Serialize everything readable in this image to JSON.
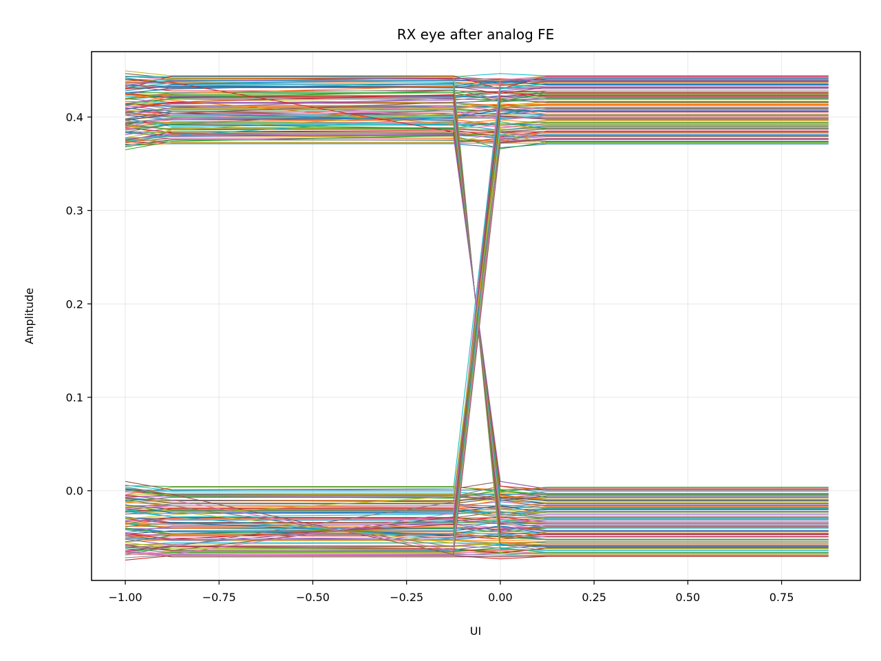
{
  "chart_data": {
    "type": "line",
    "title": "RX eye after analog FE",
    "xlabel": "UI",
    "ylabel": "Amplitude",
    "xlim": [
      -1.09,
      0.96
    ],
    "ylim": [
      -0.096,
      0.47
    ],
    "xticks": [
      -1.0,
      -0.75,
      -0.5,
      -0.25,
      0.0,
      0.25,
      0.5,
      0.75
    ],
    "xtick_labels": [
      "−1.00",
      "−0.75",
      "−0.50",
      "−0.25",
      "0.00",
      "0.25",
      "0.50",
      "0.75"
    ],
    "yticks": [
      0.0,
      0.1,
      0.2,
      0.3,
      0.4
    ],
    "ytick_labels": [
      "0.0",
      "0.1",
      "0.2",
      "0.3",
      "0.4"
    ],
    "grid": true,
    "legend": "none",
    "sample_x": [
      -1.0,
      -0.875,
      -0.125,
      0.0,
      0.125,
      0.875
    ],
    "levels": {
      "high": [
        0.371,
        0.445
      ],
      "low": [
        -0.071,
        0.003
      ]
    },
    "series": [
      {
        "values": [
          0.442,
          0.435,
          0.44,
          0.436,
          0.441,
          0.441
        ]
      },
      {
        "values": [
          0.372,
          0.381,
          0.377,
          0.374,
          0.384,
          0.384
        ]
      },
      {
        "values": [
          0.365,
          0.374,
          0.38,
          0.366,
          0.373,
          0.373
        ]
      },
      {
        "values": [
          0.43,
          0.444,
          0.444,
          0.43,
          0.444,
          0.444
        ]
      },
      {
        "values": [
          0.409,
          0.414,
          0.418,
          0.423,
          0.419,
          0.419
        ]
      },
      {
        "values": [
          0.398,
          0.406,
          0.402,
          0.401,
          0.398,
          0.398
        ]
      },
      {
        "values": [
          0.387,
          0.392,
          0.395,
          0.389,
          0.393,
          0.393
        ]
      },
      {
        "values": [
          0.42,
          0.426,
          0.429,
          0.419,
          0.428,
          0.428
        ]
      },
      {
        "values": [
          0.378,
          0.373,
          0.373,
          0.383,
          0.372,
          0.372
        ]
      },
      {
        "values": [
          0.438,
          0.44,
          0.437,
          0.431,
          0.436,
          0.436
        ]
      },
      {
        "values": [
          0.402,
          0.397,
          0.399,
          0.408,
          0.406,
          0.406
        ]
      },
      {
        "values": [
          0.415,
          0.412,
          0.41,
          0.414,
          0.413,
          0.413
        ]
      },
      {
        "values": [
          0.393,
          0.386,
          0.388,
          0.395,
          0.387,
          0.387
        ]
      },
      {
        "values": [
          0.425,
          0.421,
          0.423,
          0.427,
          0.422,
          0.422
        ]
      },
      {
        "values": [
          0.383,
          0.379,
          0.382,
          0.377,
          0.38,
          0.38
        ]
      },
      {
        "values": [
          0.434,
          0.431,
          0.433,
          0.425,
          0.432,
          0.432
        ]
      },
      {
        "values": [
          0.407,
          0.402,
          0.406,
          0.397,
          0.401,
          0.401
        ]
      },
      {
        "values": [
          0.37,
          0.376,
          0.375,
          0.372,
          0.376,
          0.376
        ]
      },
      {
        "values": [
          0.412,
          0.419,
          0.415,
          0.411,
          0.417,
          0.417
        ]
      },
      {
        "values": [
          0.396,
          0.39,
          0.392,
          0.386,
          0.391,
          0.391
        ]
      },
      {
        "values": [
          0.428,
          0.434,
          0.431,
          0.438,
          0.435,
          0.435
        ]
      },
      {
        "values": [
          0.389,
          0.395,
          0.397,
          0.392,
          0.396,
          0.396
        ]
      },
      {
        "values": [
          0.419,
          0.424,
          0.426,
          0.417,
          0.425,
          0.425
        ]
      },
      {
        "values": [
          0.375,
          0.384,
          0.386,
          0.379,
          0.385,
          0.385
        ]
      },
      {
        "values": [
          0.436,
          0.438,
          0.442,
          0.44,
          0.439,
          0.439
        ]
      },
      {
        "values": [
          0.01,
          0.001,
          0.002,
          0.01,
          0.002,
          0.002
        ]
      },
      {
        "values": [
          -0.068,
          -0.069,
          -0.068,
          -0.069,
          -0.069,
          -0.069
        ]
      },
      {
        "values": [
          0.004,
          -0.004,
          -0.006,
          0.005,
          -0.003,
          -0.003
        ]
      },
      {
        "values": [
          -0.055,
          -0.062,
          -0.06,
          -0.056,
          -0.062,
          -0.062
        ]
      },
      {
        "values": [
          -0.02,
          -0.028,
          -0.025,
          -0.022,
          -0.03,
          -0.03
        ]
      },
      {
        "values": [
          -0.04,
          -0.044,
          -0.046,
          -0.038,
          -0.046,
          -0.046
        ]
      },
      {
        "values": [
          -0.012,
          -0.016,
          -0.018,
          -0.01,
          -0.017,
          -0.017
        ]
      },
      {
        "values": [
          -0.062,
          -0.066,
          -0.065,
          -0.061,
          -0.066,
          -0.066
        ]
      },
      {
        "values": [
          -0.03,
          -0.035,
          -0.033,
          -0.028,
          -0.034,
          -0.034
        ]
      },
      {
        "values": [
          -0.048,
          -0.053,
          -0.05,
          -0.047,
          -0.052,
          -0.052
        ]
      },
      {
        "values": [
          -0.005,
          -0.01,
          -0.012,
          -0.004,
          -0.011,
          -0.011
        ]
      },
      {
        "values": [
          -0.066,
          -0.068,
          -0.067,
          -0.064,
          -0.068,
          -0.068
        ]
      },
      {
        "values": [
          -0.025,
          -0.02,
          -0.021,
          -0.026,
          -0.022,
          -0.022
        ]
      },
      {
        "values": [
          -0.058,
          -0.057,
          -0.056,
          -0.059,
          -0.057,
          -0.057
        ]
      },
      {
        "values": [
          -0.035,
          -0.04,
          -0.041,
          -0.033,
          -0.04,
          -0.04
        ]
      },
      {
        "values": [
          -0.015,
          -0.024,
          -0.023,
          -0.016,
          -0.024,
          -0.024
        ]
      },
      {
        "values": [
          -0.05,
          -0.047,
          -0.044,
          -0.052,
          -0.044,
          -0.044
        ]
      },
      {
        "values": [
          0.002,
          -0.006,
          -0.008,
          0.001,
          -0.007,
          -0.007
        ]
      },
      {
        "values": [
          -0.064,
          -0.06,
          -0.062,
          -0.067,
          -0.061,
          -0.061
        ]
      },
      {
        "values": [
          -0.045,
          -0.038,
          -0.036,
          -0.043,
          -0.037,
          -0.037
        ]
      },
      {
        "values": [
          -0.008,
          -0.013,
          -0.014,
          -0.007,
          -0.014,
          -0.014
        ]
      },
      {
        "values": [
          -0.032,
          -0.031,
          -0.03,
          -0.034,
          -0.031,
          -0.031
        ]
      },
      {
        "values": [
          -0.06,
          -0.064,
          -0.063,
          -0.058,
          -0.064,
          -0.064
        ]
      },
      {
        "values": [
          0.438,
          0.441,
          0.443,
          -0.067,
          -0.068,
          -0.068
        ]
      },
      {
        "values": [
          0.432,
          0.436,
          0.44,
          -0.062,
          -0.064,
          -0.064
        ]
      },
      {
        "values": [
          0.426,
          0.43,
          0.436,
          -0.058,
          -0.06,
          -0.06
        ]
      },
      {
        "values": [
          0.42,
          0.425,
          0.433,
          -0.055,
          -0.056,
          -0.056
        ]
      },
      {
        "values": [
          0.414,
          0.42,
          0.428,
          -0.05,
          -0.052,
          -0.052
        ]
      },
      {
        "values": [
          0.408,
          0.416,
          0.424,
          -0.045,
          -0.047,
          -0.047
        ]
      },
      {
        "values": [
          0.402,
          0.41,
          0.42,
          -0.04,
          -0.043,
          -0.043
        ]
      },
      {
        "values": [
          0.396,
          0.404,
          0.416,
          -0.036,
          -0.038,
          -0.038
        ]
      },
      {
        "values": [
          0.39,
          0.398,
          0.412,
          -0.03,
          -0.034,
          -0.034
        ]
      },
      {
        "values": [
          0.384,
          0.392,
          0.408,
          -0.025,
          -0.029,
          -0.029
        ]
      },
      {
        "values": [
          0.378,
          0.386,
          0.404,
          -0.02,
          -0.024,
          -0.024
        ]
      },
      {
        "values": [
          0.374,
          0.38,
          0.4,
          -0.015,
          -0.019,
          -0.019
        ]
      },
      {
        "values": [
          0.41,
          0.404,
          0.396,
          -0.01,
          -0.014,
          -0.014
        ]
      },
      {
        "values": [
          0.424,
          0.418,
          0.392,
          -0.005,
          -0.009,
          -0.009
        ]
      },
      {
        "values": [
          0.386,
          0.392,
          0.388,
          0.0,
          -0.004,
          -0.004
        ]
      },
      {
        "values": [
          0.44,
          0.437,
          0.384,
          0.005,
          0.001,
          0.001
        ]
      },
      {
        "values": [
          0.376,
          0.382,
          0.38,
          0.01,
          0.002,
          0.002
        ]
      },
      {
        "values": [
          0.002,
          -0.004,
          -0.068,
          0.372,
          0.376,
          0.376
        ]
      },
      {
        "values": [
          -0.004,
          -0.01,
          -0.064,
          0.38,
          0.383,
          0.383
        ]
      },
      {
        "values": [
          -0.01,
          -0.016,
          -0.06,
          0.386,
          0.39,
          0.39
        ]
      },
      {
        "values": [
          -0.016,
          -0.022,
          -0.056,
          0.392,
          0.396,
          0.396
        ]
      },
      {
        "values": [
          -0.022,
          -0.028,
          -0.052,
          0.398,
          0.402,
          0.402
        ]
      },
      {
        "values": [
          -0.028,
          -0.034,
          -0.048,
          0.404,
          0.408,
          0.408
        ]
      },
      {
        "values": [
          -0.034,
          -0.04,
          -0.044,
          0.41,
          0.414,
          0.414
        ]
      },
      {
        "values": [
          -0.04,
          -0.046,
          -0.04,
          0.416,
          0.42,
          0.42
        ]
      },
      {
        "values": [
          -0.046,
          -0.052,
          -0.036,
          0.422,
          0.426,
          0.426
        ]
      },
      {
        "values": [
          -0.052,
          -0.058,
          -0.032,
          0.428,
          0.432,
          0.432
        ]
      },
      {
        "values": [
          -0.058,
          -0.064,
          -0.028,
          0.434,
          0.438,
          0.438
        ]
      },
      {
        "values": [
          -0.064,
          -0.068,
          -0.024,
          0.44,
          0.443,
          0.443
        ]
      },
      {
        "values": [
          -0.068,
          -0.06,
          -0.012,
          0.376,
          0.379,
          0.379
        ]
      },
      {
        "values": [
          -0.03,
          -0.026,
          -0.006,
          0.388,
          0.392,
          0.392
        ]
      },
      {
        "values": [
          0.006,
          0.0,
          0.002,
          0.43,
          0.436,
          0.436
        ]
      }
    ]
  }
}
